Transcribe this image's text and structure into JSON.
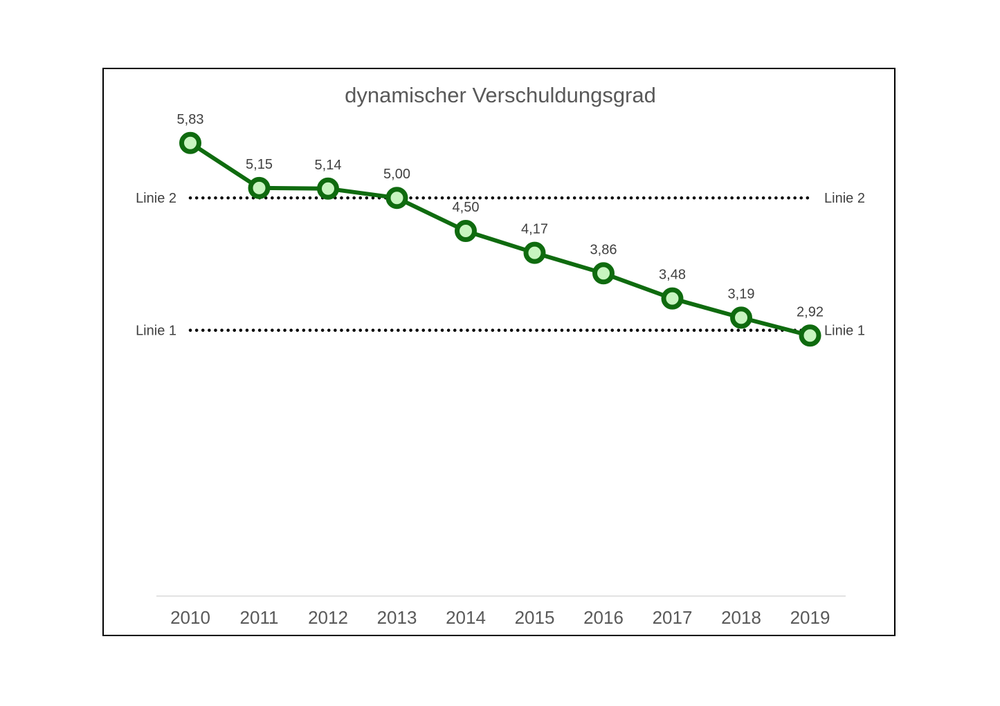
{
  "chart_data": {
    "type": "line",
    "title": "dynamischer Verschuldungsgrad",
    "xlabel": "",
    "ylabel": "",
    "categories": [
      "2010",
      "2011",
      "2012",
      "2013",
      "2014",
      "2015",
      "2016",
      "2017",
      "2018",
      "2019"
    ],
    "series": [
      {
        "values": [
          5.83,
          5.15,
          5.14,
          5.0,
          4.5,
          4.17,
          3.86,
          3.48,
          3.19,
          2.92
        ],
        "data_labels": [
          "5,83",
          "5,15",
          "5,14",
          "5,00",
          "4,50",
          "4,17",
          "3,86",
          "3,48",
          "3,19",
          "2,92"
        ],
        "color": "#0f6b0f",
        "marker_fill": "#c8f5c0"
      }
    ],
    "reference_lines": [
      {
        "label": "Linie 2",
        "value": 5.0,
        "style": "dotted",
        "color": "#000000"
      },
      {
        "label": "Linie 1",
        "value": 3.0,
        "style": "dotted",
        "color": "#000000"
      }
    ],
    "ylim": [
      0,
      7
    ],
    "grid": false,
    "legend": "none",
    "y_axis_visible": false
  }
}
